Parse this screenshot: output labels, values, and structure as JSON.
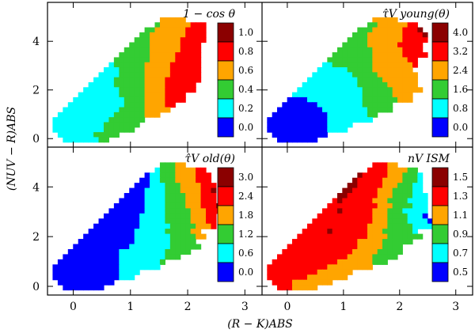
{
  "chart_data": {
    "type": "heatmap",
    "xlabel": "(R − K)ABS",
    "ylabel": "(NUV − R)ABS",
    "xlim": [
      -0.45,
      3.3
    ],
    "ylim": [
      -0.35,
      5.6
    ],
    "xticks": [
      "0",
      "1",
      "2",
      "3"
    ],
    "yticks": [
      "0",
      "2",
      "4"
    ],
    "xticks_values": [
      0,
      1,
      2,
      3
    ],
    "yticks_values": [
      0,
      2,
      4
    ],
    "class_colors": [
      "#0000ff",
      "#00ffff",
      "#33cc33",
      "#ffa500",
      "#ff0000",
      "#8b0000"
    ],
    "panels": [
      {
        "id": "one-minus-cos-theta",
        "title": "1 − cos θ",
        "colorbar_labels": [
          "1.0",
          "0.8",
          "0.6",
          "0.4",
          "0.2",
          "0.0"
        ],
        "cells": [
          "..........................................",
          "..........................................",
          "..........................................",
          "......................33333...............",
          ".....................2333333444...........",
          "...................223333334444...........",
          "..................2233333334444...........",
          ".................22233333344444...........",
          "................22223333334444............",
          "...............222223333334444............",
          "..............2222223333344444............",
          ".............22222223333344444............",
          "............122222233333444444............",
          "...........1112222233333444444............",
          "..........11112222233333444444............",
          ".........111122222233334444444............",
          "........111112222223333444444.............",
          ".......1111111222223333444444.............",
          "......111111112222233334444...............",
          ".....1111111111222233334444...............",
          "....111111111112222333344.................",
          "...111111111112222233333..................",
          "..11111111111222222333....................",
          ".111111111112222222.......................",
          ".11111111112222222........................",
          ".1111111111222222.........................",
          "..111111122222............................",
          "...111111122..............................",
          ".........................................."
        ]
      },
      {
        "id": "tau-young",
        "title": "τ̂V young(θ)",
        "colorbar_labels": [
          "4.0",
          "3.2",
          "2.4",
          "1.6",
          "0.8",
          "0.0"
        ],
        "cells": [
          "..........................................",
          "..........................................",
          "..........................................",
          "......................33333...............",
          ".....................2233333344...........",
          "...................2223333334445..........",
          "..................222333333344445.........",
          ".................2222333333344444.........",
          "................2222233333344444..........",
          "...............22222223333334444..........",
          "..............2222222233333344444.........",
          ".............222222222333333344...........",
          "............1122222222333333334...........",
          "...........1111112222233333333............",
          "..........111111112222233333333...........",
          ".........1111111111222223333333...........",
          "........11111111111222222333333...........",
          ".......1111111111111222222333333..........",
          "......111111111111112222223333............",
          ".....0000111111111112222222333............",
          "....0000000111111111222222................",
          "...00000000011111111122222................",
          "..000000000001111111122...................",
          ".000000000000111111111....................",
          ".00000000000011111........................",
          ".0000000000001111.........................",
          "..00000000000.............................",
          "...00000000...............................",
          ".........................................."
        ]
      },
      {
        "id": "tau-old",
        "title": "τ̂V old(θ)",
        "colorbar_labels": [
          "3.0",
          "2.4",
          "1.8",
          "1.2",
          "0.6",
          "0.0"
        ],
        "cells": [
          "..........................................",
          "..........................................",
          "..........................................",
          "......................22233...............",
          ".....................1222333344...........",
          "...................0112223333444..........",
          "..................00112223333444..........",
          ".................0001112223333444.........",
          "................00011112223333445.........",
          "...............000011112222333444.........",
          "..............0000011112222333444.........",
          ".............000000111122223334445........",
          "............0000000111122222333444........",
          "...........0000000111112222233344.........",
          "..........00000000111112222233344.........",
          ".........000000000111111222223334.........",
          "........0000000001111112222233............",
          ".......000000000011111112222233...........",
          "......00000000000111111122222.............",
          ".....0000000000011111111222222............",
          "....000000000011111111122222..............",
          "...00000000000111111111222................",
          "..000000000000111111112...................",
          ".000000000000011111111....................",
          ".00000000000001111........................",
          ".0000000000000111.........................",
          "..00000000000.............................",
          "...00000000...............................",
          ".........................................."
        ]
      },
      {
        "id": "n-ism",
        "title": "nV ISM",
        "colorbar_labels": [
          "1.5",
          "1.3",
          "1.1",
          "0.9",
          "0.7",
          "0.5"
        ],
        "cells": [
          "..........................................",
          "..........................................",
          "..........................................",
          "......................44433...............",
          ".....................4444333322...........",
          "...................5444443332221..........",
          "..................54444433332221..........",
          ".................554444433322211..........",
          "................5544444333222211..........",
          "...............554444443332222111.........",
          "..............4544444433322221111.........",
          ".............44444444443332222111.........",
          "............444544444433322211111.........",
          "...........4444444444433322221110.........",
          "..........444444444444333222211110........",
          ".........4444444444443333222221111........",
          "........44444544444443332222221...........",
          ".......4444444444444433332222222..........",
          "......444444444444433333222222............",
          ".....44444444444444333332222..............",
          "....444444444444443333322222..............",
          "...444444444444443333322222...............",
          "..44444444444443333333222.................",
          ".444444444444333333333....................",
          ".44444444443333333........................",
          ".4444444433333333.........................",
          "..444433333333............................",
          "...44433333...............................",
          ".........................................."
        ]
      }
    ]
  }
}
